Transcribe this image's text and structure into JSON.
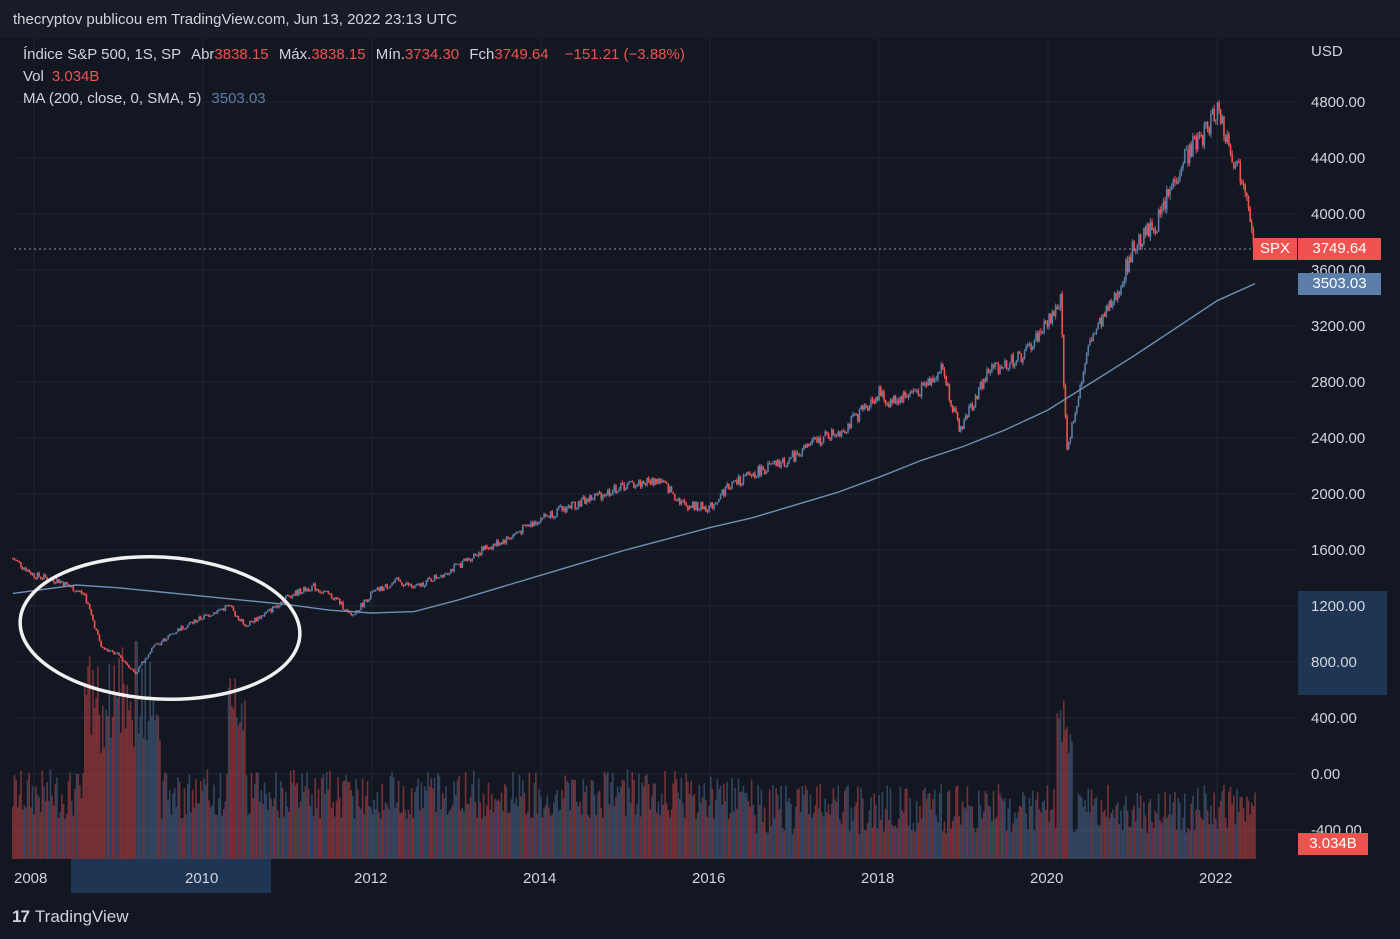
{
  "header": {
    "published_text": "thecryptov publicou em TradingView.com, Jun 13, 2022 23:13 UTC"
  },
  "legend": {
    "symbol": "Índice S&P 500, 1S, SP",
    "open_label": "Abr",
    "open_value": "3838.15",
    "high_label": "Máx.",
    "high_value": "3838.15",
    "low_label": "Mín.",
    "low_value": "3734.30",
    "close_label": "Fch",
    "close_value": "3749.64",
    "change": "−151.21 (−3.88%)",
    "vol_label": "Vol",
    "vol_value": "3.034B",
    "ma_label": "MA (200, close, 0, SMA, 5)",
    "ma_value": "3503.03"
  },
  "price_axis": {
    "currency": "USD",
    "spx_tag_label": "SPX",
    "spx_tag_value": "3749.64",
    "ma_tag_value": "3503.03",
    "vol_tag_value": "3.034B"
  },
  "branding": {
    "logo_mark": "17",
    "logo_text": "TradingView"
  },
  "colors": {
    "background": "#131722",
    "up": "#5b7ea8",
    "down": "#ef5350",
    "ma_line": "#6f8fb5",
    "text": "#d1d4dc",
    "grid": "#1f2432",
    "highlight": "#1e3554"
  },
  "chart_data": {
    "type": "candlestick",
    "title": "Índice S&P 500, 1S, SP",
    "currency": "USD",
    "x_ticks": [
      "2008",
      "2010",
      "2012",
      "2014",
      "2016",
      "2018",
      "2020",
      "2022"
    ],
    "y_ticks": [
      "4800.00",
      "4400.00",
      "4000.00",
      "3600.00",
      "3200.00",
      "2800.00",
      "2400.00",
      "2000.00",
      "1600.00",
      "1200.00",
      "800.00",
      "400.00",
      "0.00",
      "-400.00"
    ],
    "ylim": [
      -400,
      4800
    ],
    "grid": true,
    "price_series": {
      "name": "SPX",
      "x": [
        2007.75,
        2008.0,
        2008.3,
        2008.6,
        2008.8,
        2009.0,
        2009.2,
        2009.4,
        2009.7,
        2010.0,
        2010.3,
        2010.5,
        2010.8,
        2011.0,
        2011.3,
        2011.6,
        2011.75,
        2012.0,
        2012.3,
        2012.5,
        2012.8,
        2013.0,
        2013.3,
        2013.6,
        2014.0,
        2014.5,
        2015.0,
        2015.4,
        2015.7,
        2016.0,
        2016.2,
        2016.6,
        2016.9,
        2017.2,
        2017.6,
        2018.0,
        2018.1,
        2018.5,
        2018.75,
        2018.95,
        2019.3,
        2019.7,
        2020.0,
        2020.15,
        2020.22,
        2020.5,
        2020.8,
        2021.0,
        2021.3,
        2021.6,
        2021.9,
        2022.0,
        2022.2,
        2022.35,
        2022.45
      ],
      "values": [
        1540,
        1420,
        1380,
        1280,
        900,
        850,
        720,
        900,
        1030,
        1120,
        1200,
        1060,
        1170,
        1270,
        1340,
        1240,
        1120,
        1290,
        1380,
        1330,
        1420,
        1480,
        1600,
        1680,
        1830,
        1950,
        2060,
        2100,
        1920,
        1900,
        2050,
        2170,
        2230,
        2360,
        2470,
        2720,
        2650,
        2750,
        2900,
        2450,
        2880,
        2980,
        3230,
        3380,
        2300,
        3100,
        3400,
        3750,
        3950,
        4400,
        4620,
        4770,
        4400,
        4200,
        3750
      ]
    },
    "ma_series": {
      "name": "MA (200, close, 0, SMA, 5)",
      "x": [
        2007.75,
        2008.5,
        2009.0,
        2009.5,
        2010.0,
        2010.5,
        2011.0,
        2011.5,
        2012.0,
        2012.5,
        2013.0,
        2013.5,
        2014.0,
        2014.5,
        2015.0,
        2015.5,
        2016.0,
        2016.5,
        2017.0,
        2017.5,
        2018.0,
        2018.5,
        2019.0,
        2019.5,
        2020.0,
        2020.5,
        2021.0,
        2021.5,
        2022.0,
        2022.45
      ],
      "values": [
        1290,
        1350,
        1330,
        1300,
        1270,
        1240,
        1210,
        1170,
        1150,
        1160,
        1240,
        1330,
        1420,
        1510,
        1600,
        1680,
        1760,
        1830,
        1920,
        2010,
        2120,
        2240,
        2340,
        2460,
        2600,
        2790,
        2980,
        3180,
        3380,
        3503.03
      ]
    },
    "last_close": 3749.64,
    "ma_last": 3503.03,
    "volume_last": "3.034B"
  }
}
